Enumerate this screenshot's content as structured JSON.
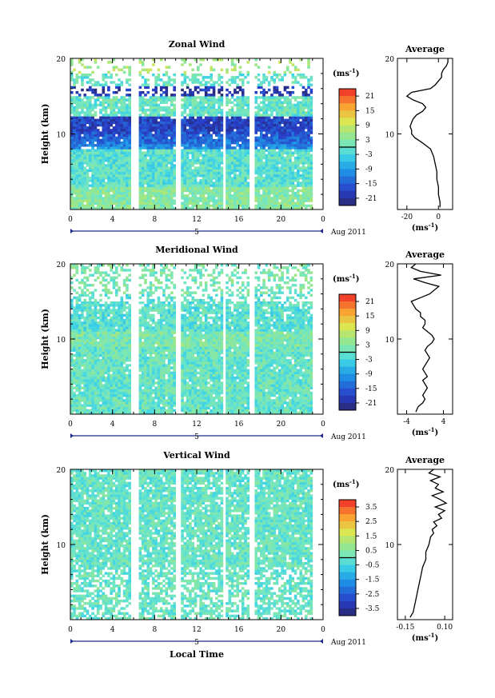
{
  "chart_data": [
    {
      "type": "heatmap",
      "title": "Zonal Wind",
      "ylabel": "Height (km)",
      "x_ticks": [
        "0",
        "4",
        "8",
        "12",
        "16",
        "20",
        "0"
      ],
      "y_ticks": [
        "20",
        "10"
      ],
      "date_label": "5",
      "date_suffix": "Aug 2011",
      "ylim": [
        0,
        20
      ],
      "xlim": [
        0,
        24
      ],
      "colorbar": {
        "unit": "(ms",
        "unit_exp": "-1",
        "unit_close": ")",
        "ticks": [
          "21",
          "15",
          "9",
          "3",
          "-3",
          "-9",
          "-15",
          "-21"
        ],
        "range": [
          -24,
          24
        ]
      },
      "profile": {
        "title": "Average",
        "x_ticks": [
          "-20",
          "0"
        ],
        "x_tick_values": [
          -20,
          0
        ],
        "xlim": [
          -26,
          9
        ],
        "unit": "(ms",
        "unit_exp": "-1",
        "unit_close": ")",
        "height_km": [
          0.3,
          1,
          2,
          3,
          4,
          5,
          6,
          7,
          8,
          8.8,
          9.5,
          10,
          10.5,
          11,
          11.5,
          12,
          12.5,
          13,
          13.5,
          14,
          14.5,
          15,
          15.5,
          16,
          16.5,
          17,
          17.5,
          18,
          18.5,
          19,
          19.5,
          20
        ],
        "values": [
          1,
          1,
          0,
          0,
          -1,
          -1,
          -2,
          -3,
          -5,
          -10,
          -15,
          -17,
          -17,
          -18,
          -17,
          -16,
          -14,
          -10,
          -8,
          -10,
          -16,
          -20,
          -17,
          -5,
          -2,
          0,
          2,
          2,
          3,
          5,
          6,
          6
        ]
      }
    },
    {
      "type": "heatmap",
      "title": "Meridional Wind",
      "ylabel": "Height (km)",
      "x_ticks": [
        "0",
        "4",
        "8",
        "12",
        "16",
        "20",
        "0"
      ],
      "y_ticks": [
        "20",
        "10"
      ],
      "date_label": "5",
      "date_suffix": "Aug 2011",
      "ylim": [
        0,
        20
      ],
      "xlim": [
        0,
        24
      ],
      "colorbar": {
        "unit": "(ms",
        "unit_exp": "-1",
        "unit_close": ")",
        "ticks": [
          "21",
          "15",
          "9",
          "3",
          "-3",
          "-9",
          "-15",
          "-21"
        ],
        "range": [
          -24,
          24
        ]
      },
      "profile": {
        "title": "Average",
        "x_ticks": [
          "-4",
          "4"
        ],
        "x_tick_values": [
          -4,
          4
        ],
        "xlim": [
          -6,
          6
        ],
        "unit": "(ms",
        "unit_exp": "-1",
        "unit_close": ")",
        "height_km": [
          0.3,
          1,
          1.5,
          2,
          2.5,
          3,
          3.5,
          4,
          4.5,
          5,
          5.5,
          6,
          6.5,
          7,
          7.5,
          8,
          8.5,
          9,
          9.5,
          10,
          10.5,
          11,
          11.5,
          12,
          12.5,
          13,
          13.5,
          14,
          14.5,
          15,
          15.5,
          16,
          16.5,
          17,
          17.5,
          18,
          18.5,
          19,
          19.5,
          20
        ],
        "values": [
          -2,
          -1.5,
          -0.5,
          0,
          -0.5,
          0,
          0.5,
          0,
          -0.5,
          0.5,
          0,
          -0.5,
          0,
          0.5,
          1,
          0.5,
          0,
          0.5,
          1.5,
          2,
          1.5,
          0.5,
          -0.5,
          0,
          0,
          -1,
          -1,
          -2,
          -2.5,
          -3,
          -1,
          1,
          2,
          3,
          0,
          -2.5,
          3.5,
          -1,
          -3,
          -2
        ]
      }
    },
    {
      "type": "heatmap",
      "title": "Vertical Wind",
      "ylabel": "Height (km)",
      "xlabel": "Local Time",
      "x_ticks": [
        "0",
        "4",
        "8",
        "12",
        "16",
        "20",
        "0"
      ],
      "y_ticks": [
        "20",
        "10"
      ],
      "date_label": "5",
      "date_suffix": "Aug 2011",
      "ylim": [
        0,
        20
      ],
      "xlim": [
        0,
        24
      ],
      "colorbar": {
        "unit": "(ms",
        "unit_exp": "-1",
        "unit_close": ")",
        "ticks": [
          "3.5",
          "2.5",
          "1.5",
          "0.5",
          "-0.5",
          "-1.5",
          "-2.5",
          "-3.5"
        ],
        "range": [
          -4,
          4
        ]
      },
      "profile": {
        "title": "Average",
        "x_ticks": [
          "-0.15",
          "0.10"
        ],
        "x_tick_values": [
          -0.15,
          0.1
        ],
        "xlim": [
          -0.2,
          0.15
        ],
        "unit": "(ms",
        "unit_exp": "-1",
        "unit_close": ")",
        "height_km": [
          0.3,
          1,
          2,
          3,
          4,
          5,
          6,
          7,
          8,
          9,
          10,
          11,
          11.5,
          12,
          12.5,
          13,
          13.5,
          14,
          14.5,
          15,
          15.5,
          16,
          16.5,
          17,
          17.5,
          18,
          18.5,
          19,
          19.5,
          20
        ],
        "values": [
          -0.12,
          -0.1,
          -0.09,
          -0.08,
          -0.07,
          -0.06,
          -0.05,
          -0.04,
          -0.02,
          -0.02,
          0.0,
          0.01,
          0.03,
          0.02,
          0.05,
          0.03,
          0.08,
          0.06,
          0.1,
          0.04,
          0.11,
          0.07,
          0.02,
          0.09,
          0.04,
          0.06,
          0.01,
          0.07,
          0.0,
          0.03
        ]
      }
    }
  ]
}
